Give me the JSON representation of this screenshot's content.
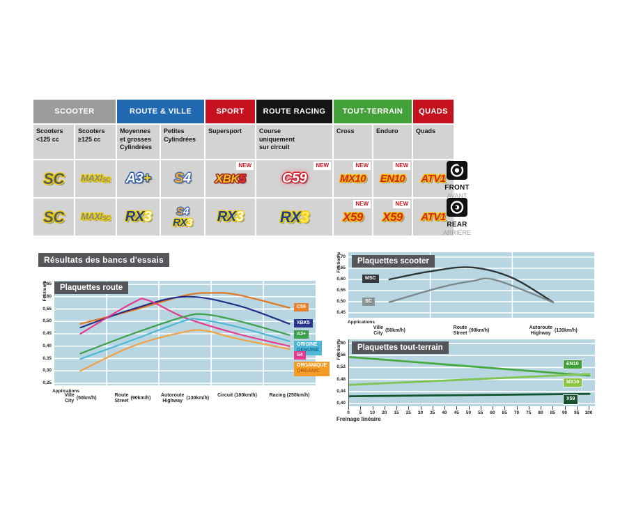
{
  "resultats_title": "Résultats des bancs d'essais",
  "table": {
    "new_badge": "NEW",
    "front_label": "FRONT",
    "front_label_fr": "AVANT",
    "rear_label": "REAR",
    "rear_label_fr": "ARRIÈRE",
    "groups": [
      {
        "label": "SCOOTER",
        "color": "#9c9c9c",
        "span": 2
      },
      {
        "label": "ROUTE & VILLE",
        "color": "#2069b0",
        "span": 2
      },
      {
        "label": "SPORT",
        "color": "#c6121f",
        "span": 1
      },
      {
        "label": "ROUTE RACING",
        "color": "#141414",
        "span": 1
      },
      {
        "label": "TOUT-TERRAIN",
        "color": "#43a13a",
        "span": 2
      },
      {
        "label": "QUADS",
        "color": "#c6121f",
        "span": 1
      }
    ],
    "columns": [
      "Scooters\n<125 cc",
      "Scooters\n≥125 cc",
      "Moyennes\net grosses\nCylindrées",
      "Petites\nCylindrées",
      "Supersport",
      "Course\nuniquement\nsur circuit",
      "Cross",
      "Enduro",
      "Quads"
    ],
    "rows": [
      {
        "name": "front",
        "cells": [
          {
            "new": false,
            "logos": [
              {
                "cls": "sc",
                "size": 22,
                "outline": "#f0d000",
                "parts": [
                  {
                    "t": "SC",
                    "c": "#545a5e"
                  }
                ]
              }
            ]
          },
          {
            "new": false,
            "logos": [
              {
                "cls": "maxisc",
                "size": 13,
                "outline": "#f0d000",
                "parts": [
                  {
                    "t": "MAXI",
                    "c": "#82868a"
                  },
                  {
                    "t": "SC",
                    "c": "#82868a",
                    "small": true
                  }
                ]
              }
            ]
          },
          {
            "new": false,
            "logos": [
              {
                "cls": "a3",
                "size": 20,
                "outline": "#2553a8",
                "parts": [
                  {
                    "t": "A3",
                    "c": "#ffffff"
                  },
                  {
                    "t": "+",
                    "c": "#ffd400"
                  }
                ]
              }
            ]
          },
          {
            "new": false,
            "logos": [
              {
                "cls": "s4",
                "size": 20,
                "outline": "#4a6fb5",
                "parts": [
                  {
                    "t": "S",
                    "c": "#f6a81c"
                  },
                  {
                    "t": "4",
                    "c": "#ffffff"
                  }
                ]
              }
            ]
          },
          {
            "new": true,
            "logos": [
              {
                "cls": "xbk5",
                "size": 17,
                "outline": "#a02020",
                "parts": [
                  {
                    "t": "XBK",
                    "c": "#f2c51d"
                  },
                  {
                    "t": "5",
                    "c": "#e03030"
                  }
                ]
              }
            ]
          },
          {
            "new": true,
            "logos": [
              {
                "cls": "c59",
                "size": 20,
                "outline": "#d01f2f",
                "glow": true,
                "parts": [
                  {
                    "t": "C59",
                    "c": "#ffffff"
                  }
                ]
              }
            ]
          },
          {
            "new": true,
            "logos": [
              {
                "cls": "mx10",
                "size": 15,
                "outline": "#f0c000",
                "parts": [
                  {
                    "t": "MX10",
                    "c": "#d42027"
                  }
                ]
              }
            ]
          },
          {
            "new": true,
            "logos": [
              {
                "cls": "en10",
                "size": 15,
                "outline": "#f0c000",
                "parts": [
                  {
                    "t": "EN10",
                    "c": "#d42027"
                  }
                ]
              }
            ]
          },
          {
            "new": false,
            "logos": [
              {
                "cls": "atv1",
                "size": 15,
                "outline": "#f0c000",
                "parts": [
                  {
                    "t": "ATV1",
                    "c": "#d42027"
                  }
                ]
              }
            ]
          }
        ]
      },
      {
        "name": "rear",
        "cells": [
          {
            "new": false,
            "logos": [
              {
                "cls": "sc",
                "size": 22,
                "outline": "#f0d000",
                "parts": [
                  {
                    "t": "SC",
                    "c": "#545a5e"
                  }
                ]
              }
            ]
          },
          {
            "new": false,
            "logos": [
              {
                "cls": "maxisc",
                "size": 13,
                "outline": "#f0d000",
                "parts": [
                  {
                    "t": "MAXI",
                    "c": "#82868a"
                  },
                  {
                    "t": "SC",
                    "c": "#82868a",
                    "small": true
                  }
                ]
              }
            ]
          },
          {
            "new": false,
            "logos": [
              {
                "cls": "rx3",
                "size": 20,
                "outline": "#f0d000",
                "parts": [
                  {
                    "t": "RX",
                    "c": "#1d3f8f"
                  },
                  {
                    "t": "3",
                    "c": "#ffffff"
                  }
                ]
              }
            ]
          },
          {
            "new": false,
            "logos": [
              {
                "cls": "s4",
                "size": 15,
                "outline": "#4a6fb5",
                "parts": [
                  {
                    "t": "S",
                    "c": "#f6a81c"
                  },
                  {
                    "t": "4",
                    "c": "#ffffff"
                  }
                ]
              },
              {
                "cls": "rx3",
                "size": 15,
                "outline": "#f0d000",
                "parts": [
                  {
                    "t": "RX",
                    "c": "#1d3f8f"
                  },
                  {
                    "t": "3",
                    "c": "#ffffff"
                  }
                ]
              }
            ]
          },
          {
            "new": false,
            "logos": [
              {
                "cls": "rx3",
                "size": 20,
                "outline": "#f0d000",
                "parts": [
                  {
                    "t": "RX",
                    "c": "#1d3f8f"
                  },
                  {
                    "t": "3",
                    "c": "#ffffff"
                  }
                ]
              }
            ]
          },
          {
            "new": false,
            "logos": [
              {
                "cls": "rx3",
                "size": 22,
                "outline": "#f0d000",
                "parts": [
                  {
                    "t": "RX",
                    "c": "#1d3f8f"
                  },
                  {
                    "t": "3",
                    "c": "#ffe96a"
                  }
                ]
              }
            ]
          },
          {
            "new": true,
            "logos": [
              {
                "cls": "x59",
                "size": 17,
                "outline": "#f0c000",
                "parts": [
                  {
                    "t": "X59",
                    "c": "#d42027"
                  }
                ]
              }
            ]
          },
          {
            "new": true,
            "logos": [
              {
                "cls": "x59",
                "size": 17,
                "outline": "#f0c000",
                "parts": [
                  {
                    "t": "X59",
                    "c": "#d42027"
                  }
                ]
              }
            ]
          },
          {
            "new": false,
            "logos": [
              {
                "cls": "atv1",
                "size": 15,
                "outline": "#f0c000",
                "parts": [
                  {
                    "t": "ATV1",
                    "c": "#d42027"
                  }
                ]
              }
            ]
          }
        ]
      }
    ]
  },
  "chart_data": [
    {
      "id": "route",
      "type": "line",
      "title": "Plaquettes route",
      "y_axis_label": "Friction µ",
      "applications_label": "Applications",
      "y_ticks": [
        "0,65",
        "0,60",
        "0,55",
        "0,50",
        "0,45",
        "0,40",
        "0,35",
        "0,30",
        "0,25"
      ],
      "x_type": "categories",
      "stroke": 2.2,
      "categories": [
        {
          "l1": "Ville",
          "l2": "City",
          "speed": "(50km/h)"
        },
        {
          "l1": "Route",
          "l2": "Street",
          "speed": "(90km/h)"
        },
        {
          "l1": "Autoroute",
          "l2": "Highway",
          "speed": "(130km/h)"
        },
        {
          "l1": "Circuit",
          "speed": "(180km/h)"
        },
        {
          "l1": "Racing",
          "speed": "(250km/h)"
        }
      ],
      "tag_side": "end",
      "series": [
        {
          "name": "C59",
          "color": "#e2751d",
          "tag_bg": "#e8812a",
          "points": [
            [
              0,
              0.49
            ],
            [
              1,
              0.545
            ],
            [
              2,
              0.605
            ],
            [
              2.5,
              0.615
            ],
            [
              3,
              0.608
            ],
            [
              4,
              0.555
            ]
          ]
        },
        {
          "name": "XBK5",
          "color": "#232f86",
          "tag_bg": "#2b3690",
          "points": [
            [
              0,
              0.475
            ],
            [
              1,
              0.55
            ],
            [
              2,
              0.6
            ],
            [
              3,
              0.565
            ],
            [
              4,
              0.49
            ]
          ]
        },
        {
          "name": "S4",
          "color": "#e63a8e",
          "tag_bg": "#e63a8e",
          "points": [
            [
              0,
              0.45
            ],
            [
              1,
              0.575
            ],
            [
              1.3,
              0.585
            ],
            [
              2,
              0.515
            ],
            [
              3,
              0.45
            ],
            [
              4,
              0.4
            ]
          ]
        },
        {
          "name": "A3+",
          "color": "#3ca04a",
          "tag_bg": "#3ca04a",
          "points": [
            [
              0,
              0.37
            ],
            [
              1,
              0.45
            ],
            [
              2,
              0.52
            ],
            [
              2.4,
              0.528
            ],
            [
              3,
              0.503
            ],
            [
              4,
              0.445
            ]
          ]
        },
        {
          "name": "ORIGINE",
          "name2": "GENUINE",
          "name2_color": "#156f94",
          "color": "#4db8d6",
          "tag_bg": "#4db8d6",
          "points": [
            [
              0,
              0.348
            ],
            [
              1,
              0.425
            ],
            [
              2,
              0.503
            ],
            [
              2.3,
              0.507
            ],
            [
              3,
              0.478
            ],
            [
              4,
              0.42
            ]
          ]
        },
        {
          "name": "ORGANIQUE",
          "name2": "ORGANIC",
          "name2_color": "#b8650e",
          "color": "#f2a243",
          "tag_bg": "#f59c26",
          "points": [
            [
              0,
              0.3
            ],
            [
              1,
              0.4
            ],
            [
              2,
              0.458
            ],
            [
              2.4,
              0.462
            ],
            [
              3,
              0.43
            ],
            [
              4,
              0.388
            ]
          ]
        }
      ]
    },
    {
      "id": "scooter",
      "type": "line",
      "title": "Plaquettes scooter",
      "y_axis_label": "Friction µ",
      "applications_label": "Applications",
      "y_ticks": [
        "0,70",
        "0,65",
        "0,60",
        "0,55",
        "0,50",
        "0,45"
      ],
      "x_type": "categories",
      "stroke": 2.4,
      "categories": [
        {
          "l1": "Ville",
          "l2": "City",
          "speed": "(50km/h)"
        },
        {
          "l1": "Route",
          "l2": "Street",
          "speed": "(90km/h)"
        },
        {
          "l1": "Autoroute",
          "l2": "Highway",
          "speed": "(130km/h)"
        }
      ],
      "tag_side": "start",
      "series": [
        {
          "name": "MSC",
          "color": "#2e3537",
          "tag_bg": "#33393b",
          "points": [
            [
              0,
              0.6
            ],
            [
              0.5,
              0.636
            ],
            [
              1,
              0.654
            ],
            [
              1.5,
              0.607
            ],
            [
              2,
              0.497
            ]
          ]
        },
        {
          "name": "SC",
          "color": "#7d898d",
          "tag_bg": "#8a9396",
          "points": [
            [
              0,
              0.498
            ],
            [
              0.6,
              0.562
            ],
            [
              1,
              0.592
            ],
            [
              1.3,
              0.597
            ],
            [
              2,
              0.497
            ]
          ]
        }
      ]
    },
    {
      "id": "tout",
      "type": "line",
      "title": "Plaquettes tout-terrain",
      "y_axis_label": "Friction µ",
      "x_label": "Freinage linéaire",
      "y_ticks": [
        "0,60",
        "0,56",
        "0,52",
        "0,48",
        "0,44",
        "0,40"
      ],
      "x_type": "linear",
      "x_range": [
        0,
        100
      ],
      "x_ticks": [
        "0",
        "5",
        "10",
        "20",
        "15",
        "25",
        "30",
        "35",
        "40",
        "45",
        "50",
        "55",
        "60",
        "65",
        "70",
        "75",
        "80",
        "85",
        "90",
        "95",
        "100"
      ],
      "stroke": 2.8,
      "tag_side": "end",
      "series": [
        {
          "name": "EN10",
          "color": "#46aa41",
          "tag_bg": "#3da339",
          "tag_dy": -16,
          "points": [
            [
              0,
              0.555
            ],
            [
              100,
              0.493
            ]
          ]
        },
        {
          "name": "MX10",
          "color": "#7fc352",
          "tag_bg": "#8bc63f",
          "tag_dy": 12,
          "points": [
            [
              0,
              0.462
            ],
            [
              100,
              0.498
            ]
          ]
        },
        {
          "name": "X59",
          "color": "#15532e",
          "tag_bg": "#14532d",
          "tag_dy": 8,
          "points": [
            [
              0,
              0.424
            ],
            [
              100,
              0.432
            ]
          ]
        }
      ]
    }
  ]
}
